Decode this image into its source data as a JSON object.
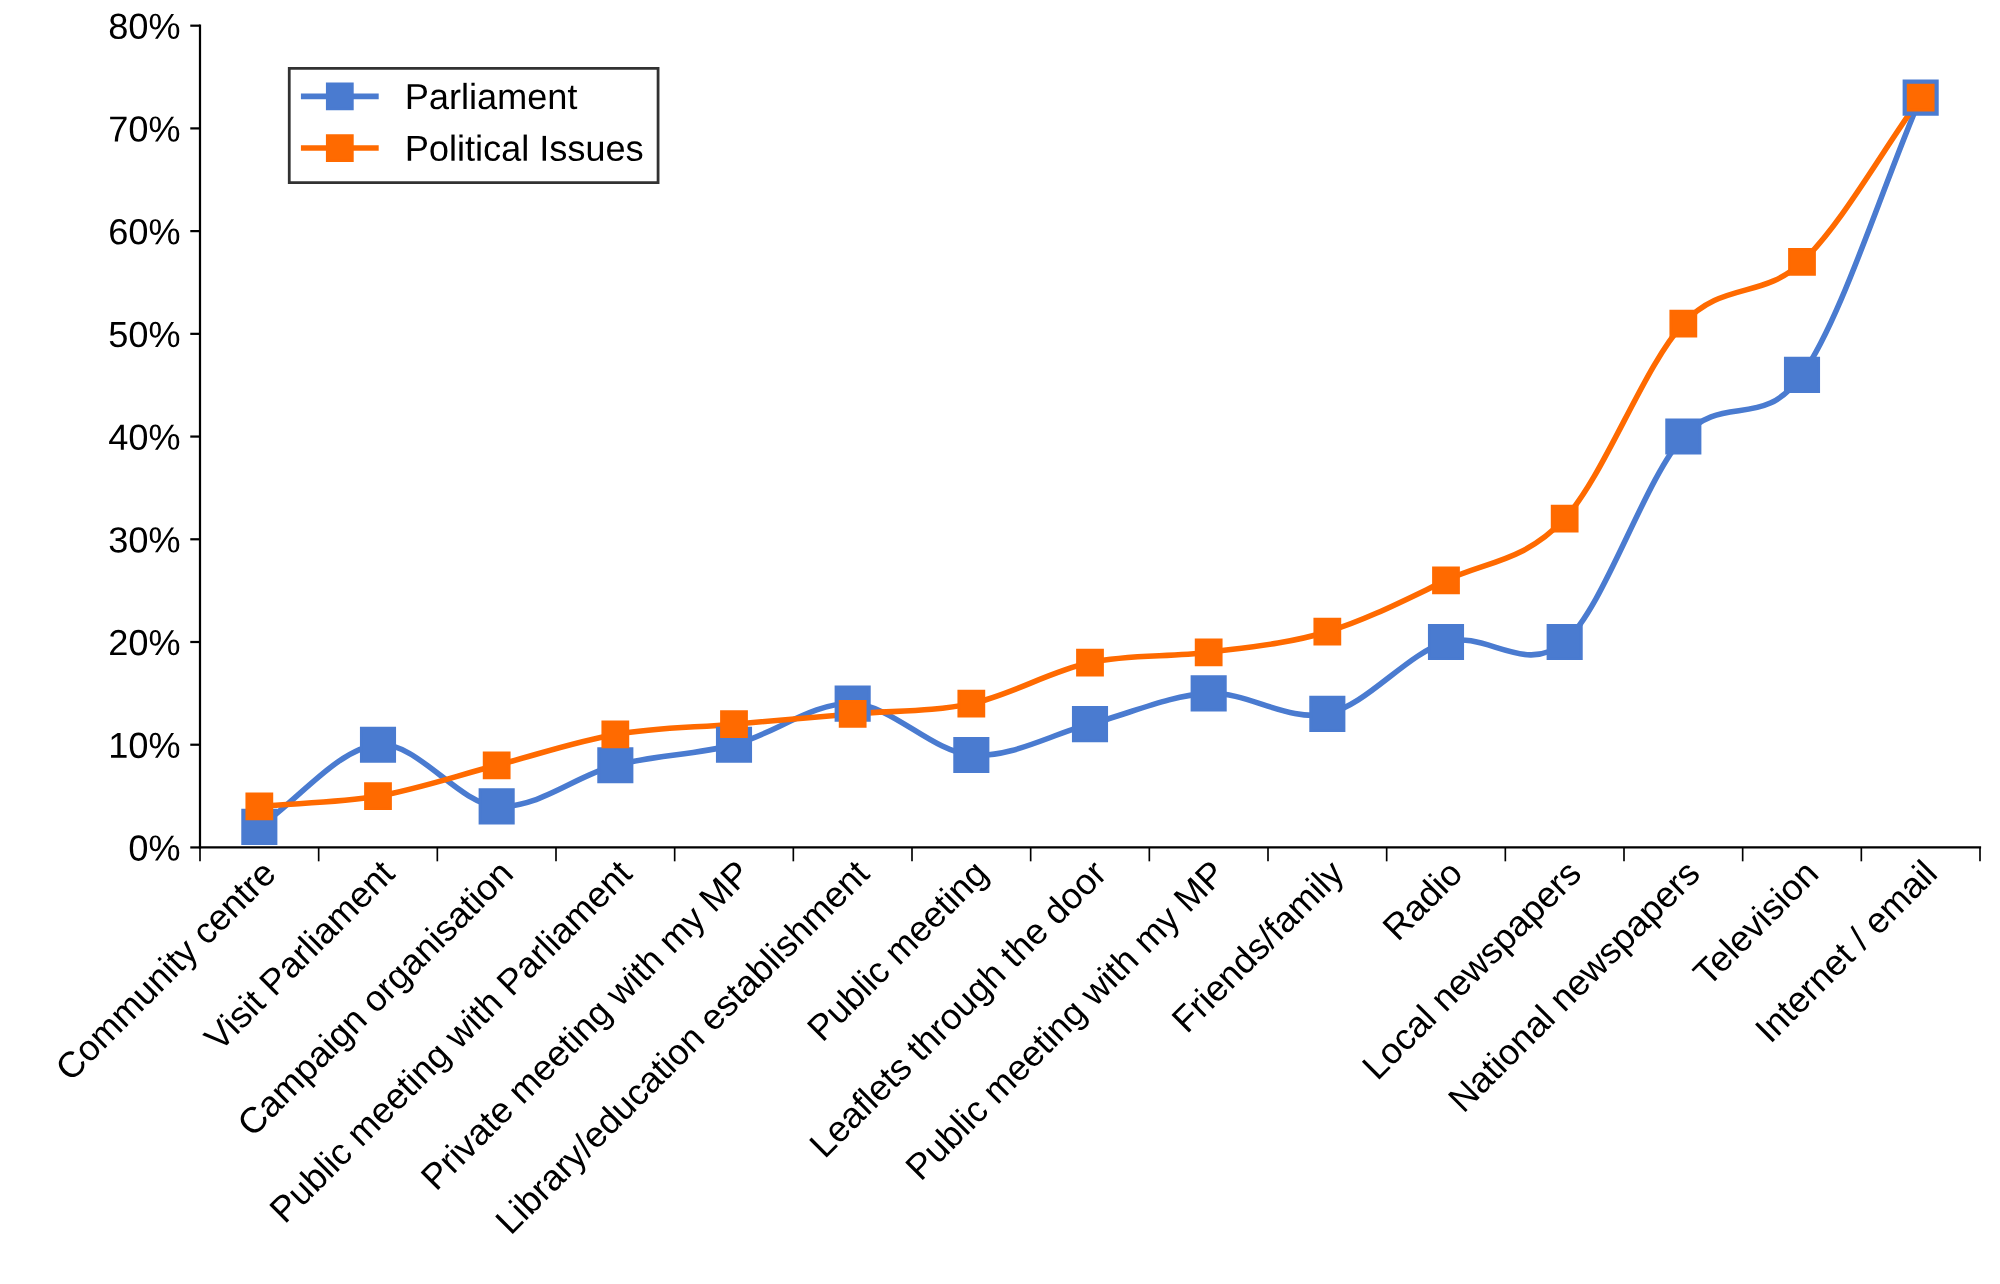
{
  "chart_data": {
    "type": "line",
    "categories": [
      "Community centre",
      "Visit Parliament",
      "Campaign organisation",
      "Public meeting with Parliament",
      "Private meeting with my MP",
      "Library/education establishment",
      "Public meeting",
      "Leaflets through the door",
      "Public meeting with my MP",
      "Friends/family",
      "Radio",
      "Local newspapers",
      "National newspapers",
      "Television",
      "Internet / email"
    ],
    "series": [
      {
        "name": "Parliament",
        "color": "#4a7bd0",
        "values": [
          2,
          10,
          4,
          8,
          10,
          14,
          9,
          12,
          15,
          13,
          20,
          20,
          40,
          46,
          73
        ]
      },
      {
        "name": "Political Issues",
        "color": "#ff6a00",
        "values": [
          4,
          5,
          8,
          11,
          12,
          13,
          14,
          18,
          19,
          21,
          26,
          32,
          51,
          57,
          73
        ]
      }
    ],
    "ylim": [
      0,
      80
    ],
    "yticks": [
      {
        "value": 0,
        "label": "0%"
      },
      {
        "value": 10,
        "label": "10%"
      },
      {
        "value": 20,
        "label": "20%"
      },
      {
        "value": 30,
        "label": "30%"
      },
      {
        "value": 40,
        "label": "40%"
      },
      {
        "value": 50,
        "label": "50%"
      },
      {
        "value": 60,
        "label": "60%"
      },
      {
        "value": 70,
        "label": "70%"
      },
      {
        "value": 80,
        "label": "80%"
      }
    ],
    "marker": "square",
    "line_style": "solid",
    "legend": "top left",
    "grid": false
  }
}
